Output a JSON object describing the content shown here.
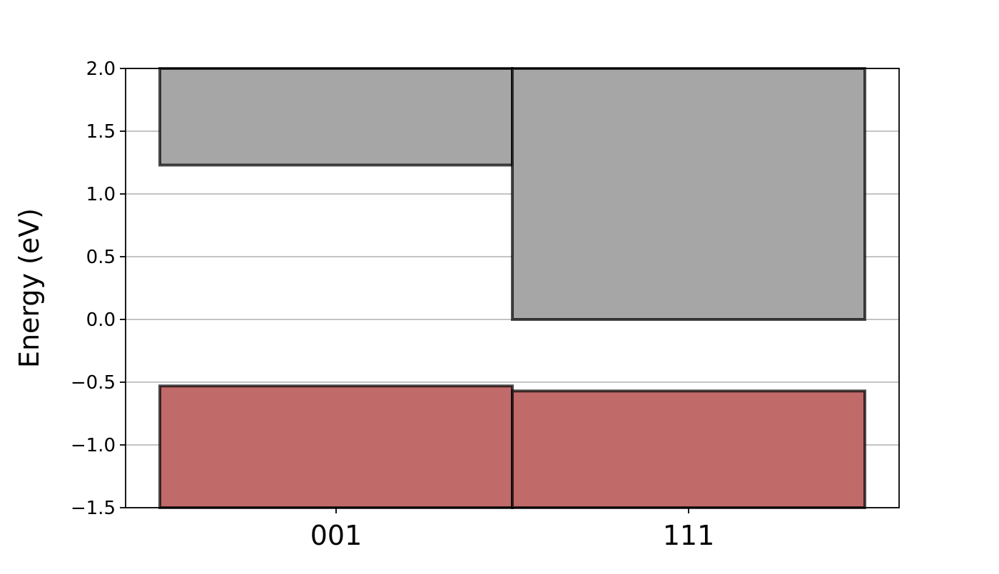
{
  "chart_data": {
    "type": "bar",
    "title": "",
    "xlabel": "",
    "ylabel": "Energy (eV)",
    "categories": [
      "001",
      "111"
    ],
    "ylim": [
      -1.5,
      2.0
    ],
    "yticks": [
      -1.5,
      -1.0,
      -0.5,
      0.0,
      0.5,
      1.0,
      1.5,
      2.0
    ],
    "ytick_labels": [
      "−1.5",
      "−1.0",
      "−0.5",
      "0.0",
      "0.5",
      "1.0",
      "1.5",
      "2.0"
    ],
    "grid": "horizontal",
    "legend": "none",
    "series": [
      {
        "bars": [
          {
            "bottom": 1.23,
            "top": 2.0
          },
          {
            "bottom": 0.0,
            "top": 2.0
          }
        ],
        "color": "#a6a6a6"
      },
      {
        "bars": [
          {
            "bottom": -1.5,
            "top": -0.53
          },
          {
            "bottom": -1.5,
            "top": -0.57
          }
        ],
        "color": "#c06a69"
      }
    ]
  }
}
